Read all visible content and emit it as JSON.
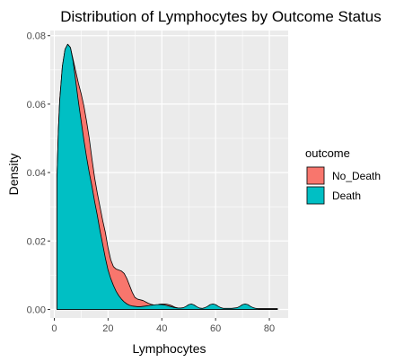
{
  "chart_data": {
    "type": "area",
    "title": "Distribution of Lymphocytes by Outcome Status",
    "xlabel": "Lymphocytes",
    "ylabel": "Density",
    "xlim": [
      -1.5,
      87
    ],
    "ylim": [
      -0.0025,
      0.0815
    ],
    "x_ticks": [
      0,
      20,
      40,
      60,
      80
    ],
    "x_tick_labels": [
      "0",
      "20",
      "40",
      "60",
      "80"
    ],
    "y_ticks": [
      0,
      0.02,
      0.04,
      0.06,
      0.08
    ],
    "y_tick_labels": [
      "0.00",
      "0.02",
      "0.04",
      "0.06",
      "0.08"
    ],
    "grid": true,
    "legend": {
      "title": "outcome",
      "position": "right"
    },
    "series": [
      {
        "name": "No_Death",
        "color": "#F8766D",
        "x": [
          1,
          1.5,
          2,
          3,
          4,
          5,
          6,
          7,
          8,
          9,
          10,
          11,
          12,
          13,
          14,
          15,
          16,
          17,
          18,
          19,
          20,
          21,
          22,
          23,
          24,
          25,
          26,
          27,
          28,
          29,
          30,
          31,
          32,
          33,
          34,
          35,
          36,
          37,
          38,
          39,
          40,
          41,
          42,
          43,
          44,
          45,
          46,
          47,
          48,
          49,
          50,
          51,
          52,
          53,
          54,
          55,
          56,
          58,
          60,
          62,
          64,
          66,
          68,
          70,
          72,
          74,
          76,
          78,
          80,
          82,
          83
        ],
        "y": [
          0.0385,
          0.052,
          0.061,
          0.071,
          0.076,
          0.0775,
          0.0765,
          0.073,
          0.0695,
          0.066,
          0.063,
          0.0595,
          0.055,
          0.05,
          0.044,
          0.0385,
          0.034,
          0.03,
          0.026,
          0.0225,
          0.018,
          0.0145,
          0.0125,
          0.0118,
          0.0115,
          0.0112,
          0.0105,
          0.009,
          0.007,
          0.005,
          0.0035,
          0.003,
          0.0028,
          0.0026,
          0.0022,
          0.0018,
          0.0015,
          0.0013,
          0.0012,
          0.0015,
          0.0016,
          0.0016,
          0.0015,
          0.0013,
          0.001,
          0.0006,
          0.0004,
          0.0003,
          0.0002,
          0.0002,
          0.0002,
          0.0002,
          0.0002,
          0.0002,
          0.0002,
          0.0002,
          0.0002,
          0.0002,
          0.0002,
          0.0002,
          0.0002,
          0.0002,
          0.0002,
          0.0002,
          0.0002,
          0.0002,
          0.0002,
          0.0002,
          0.0002,
          0.0002,
          0.0002
        ]
      },
      {
        "name": "Death",
        "color": "#00BFC4",
        "x": [
          1,
          1.5,
          2,
          3,
          4,
          5,
          6,
          7,
          8,
          9,
          10,
          11,
          12,
          13,
          14,
          15,
          16,
          17,
          18,
          19,
          20,
          21,
          22,
          23,
          24,
          25,
          26,
          27,
          28,
          29,
          30,
          31,
          32,
          33,
          34,
          35,
          36,
          37,
          38,
          39,
          40,
          41,
          42,
          43,
          44,
          45,
          46,
          47,
          48,
          49,
          50,
          51,
          52,
          53,
          54,
          55,
          56,
          57,
          58,
          59,
          60,
          61,
          62,
          63,
          64,
          65,
          66,
          67,
          68,
          69,
          70,
          71,
          72,
          73,
          74,
          75,
          76,
          78,
          80,
          82,
          83
        ],
        "y": [
          0.0385,
          0.052,
          0.061,
          0.071,
          0.076,
          0.0775,
          0.0765,
          0.0725,
          0.0665,
          0.0605,
          0.055,
          0.0495,
          0.0445,
          0.04,
          0.036,
          0.0315,
          0.0275,
          0.023,
          0.019,
          0.015,
          0.0115,
          0.009,
          0.007,
          0.0053,
          0.004,
          0.003,
          0.0022,
          0.0016,
          0.0012,
          0.001,
          0.0009,
          0.0008,
          0.0008,
          0.0009,
          0.001,
          0.0011,
          0.0012,
          0.0013,
          0.0014,
          0.0014,
          0.0014,
          0.0013,
          0.0011,
          0.0009,
          0.0007,
          0.0005,
          0.0004,
          0.0004,
          0.0005,
          0.0009,
          0.0014,
          0.0016,
          0.0013,
          0.0008,
          0.0004,
          0.0003,
          0.0005,
          0.0009,
          0.0014,
          0.0016,
          0.0014,
          0.0009,
          0.0005,
          0.0003,
          0.0003,
          0.0003,
          0.0003,
          0.0004,
          0.0005,
          0.0009,
          0.0014,
          0.0016,
          0.0014,
          0.0009,
          0.0005,
          0.0003,
          0.0002,
          0.0002,
          0.0002,
          0.0002,
          0.0002
        ]
      }
    ]
  }
}
